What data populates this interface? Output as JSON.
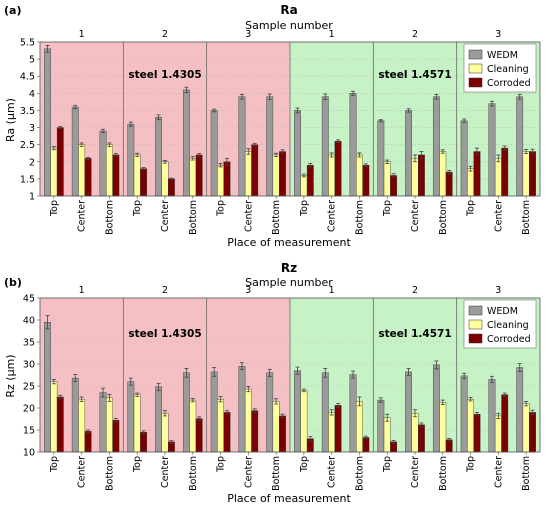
{
  "figure": {
    "colors": {
      "wedm": "#9a9a9a",
      "cleaning": "#ffff99",
      "corroded": "#7a0000",
      "bg_1_4305": "#f4c0c4",
      "bg_1_4571": "#c6f2c6",
      "error_bar": "#444444"
    }
  },
  "chart_data": [
    {
      "type": "bar",
      "panel_label": "(a)",
      "title": "Ra",
      "top_axis_title": "Sample number",
      "sample_numbers": [
        "1",
        "2",
        "3",
        "1",
        "2",
        "3"
      ],
      "steel_labels": [
        "steel 1.4305",
        "steel 1.4571"
      ],
      "xlabel": "Place of measurement",
      "ylabel": "Ra (µm)",
      "ylim": [
        1,
        5.5
      ],
      "yticks": [
        1,
        1.5,
        2,
        2.5,
        3,
        3.5,
        4,
        4.5,
        5,
        5.5
      ],
      "ytick_labels": [
        "1",
        "1.5",
        "2",
        "2.5",
        "3",
        "3.5",
        "4",
        "4.5",
        "5",
        "5.5"
      ],
      "grid": true,
      "legend_position": "top-right",
      "categories": [
        "Top",
        "Center",
        "Bottom",
        "Top",
        "Center",
        "Bottom",
        "Top",
        "Center",
        "Bottom",
        "Top",
        "Center",
        "Bottom",
        "Top",
        "Center",
        "Bottom",
        "Top",
        "Center",
        "Bottom"
      ],
      "series": [
        {
          "name": "WEDM",
          "values": [
            5.3,
            3.6,
            2.9,
            3.1,
            3.3,
            4.1,
            3.5,
            3.9,
            3.9,
            3.5,
            3.9,
            4.0,
            3.2,
            3.5,
            3.9,
            3.2,
            3.7,
            3.9
          ]
        },
        {
          "name": "Cleaning",
          "values": [
            2.4,
            2.5,
            2.5,
            2.2,
            2.0,
            2.1,
            1.9,
            2.3,
            2.2,
            1.6,
            2.2,
            2.2,
            2.0,
            2.1,
            2.3,
            1.8,
            2.1,
            2.3
          ]
        },
        {
          "name": "Corroded",
          "values": [
            3.0,
            2.1,
            2.2,
            1.8,
            1.5,
            2.2,
            2.0,
            2.5,
            2.3,
            1.9,
            2.6,
            1.9,
            1.6,
            2.2,
            1.7,
            2.3,
            2.4,
            2.3
          ]
        }
      ],
      "errors": [
        [
          0.1,
          0.05,
          0.05,
          0.06,
          0.07,
          0.08,
          0.04,
          0.07,
          0.08,
          0.07,
          0.08,
          0.06,
          0.03,
          0.05,
          0.07,
          0.05,
          0.07,
          0.07
        ],
        [
          0.05,
          0.05,
          0.05,
          0.05,
          0.04,
          0.05,
          0.05,
          0.08,
          0.05,
          0.04,
          0.06,
          0.06,
          0.05,
          0.1,
          0.05,
          0.07,
          0.1,
          0.06
        ],
        [
          0.03,
          0.03,
          0.04,
          0.03,
          0.02,
          0.04,
          0.1,
          0.04,
          0.05,
          0.05,
          0.04,
          0.04,
          0.05,
          0.1,
          0.05,
          0.1,
          0.06,
          0.07
        ]
      ]
    },
    {
      "type": "bar",
      "panel_label": "(b)",
      "title": "Rz",
      "top_axis_title": "Sample number",
      "sample_numbers": [
        "1",
        "2",
        "3",
        "1",
        "2",
        "3"
      ],
      "steel_labels": [
        "steel 1.4305",
        "steel 1.4571"
      ],
      "xlabel": "Place of measurement",
      "ylabel": "Rz (µm)",
      "ylim": [
        10,
        45
      ],
      "yticks": [
        10,
        15,
        20,
        25,
        30,
        35,
        40,
        45
      ],
      "ytick_labels": [
        "10",
        "15",
        "20",
        "25",
        "30",
        "35",
        "40",
        "45"
      ],
      "grid": true,
      "legend_position": "top-right",
      "categories": [
        "Top",
        "Center",
        "Bottom",
        "Top",
        "Center",
        "Bottom",
        "Top",
        "Center",
        "Bottom",
        "Top",
        "Center",
        "Bottom",
        "Top",
        "Center",
        "Bottom",
        "Top",
        "Center",
        "Bottom"
      ],
      "series": [
        {
          "name": "WEDM",
          "values": [
            39.5,
            26.8,
            23.5,
            26.0,
            24.8,
            28.0,
            28.2,
            29.5,
            28.0,
            28.5,
            28.0,
            27.6,
            21.8,
            28.2,
            29.8,
            27.3,
            26.5,
            29.2
          ]
        },
        {
          "name": "Cleaning",
          "values": [
            26.0,
            22.0,
            22.3,
            23.0,
            18.8,
            21.8,
            22.0,
            24.3,
            21.5,
            24.0,
            19.0,
            21.5,
            17.8,
            18.8,
            21.3,
            22.0,
            18.2,
            21.0
          ]
        },
        {
          "name": "Corroded",
          "values": [
            22.5,
            14.7,
            17.2,
            14.5,
            12.3,
            17.6,
            19.0,
            19.4,
            18.2,
            13.0,
            20.6,
            13.3,
            12.3,
            16.2,
            12.8,
            18.6,
            23.0,
            19.0
          ]
        }
      ],
      "errors": [
        [
          1.5,
          0.8,
          1.0,
          0.8,
          0.8,
          1.0,
          1.0,
          0.8,
          0.8,
          0.8,
          1.0,
          0.8,
          0.5,
          0.8,
          0.9,
          0.6,
          0.7,
          0.9
        ],
        [
          0.5,
          0.5,
          0.8,
          0.4,
          0.6,
          0.4,
          0.6,
          0.6,
          0.6,
          0.3,
          0.6,
          1.0,
          0.8,
          0.8,
          0.5,
          0.4,
          0.6,
          0.5
        ],
        [
          0.4,
          0.3,
          0.4,
          0.3,
          0.3,
          0.4,
          0.4,
          0.4,
          0.4,
          0.5,
          0.4,
          0.3,
          0.3,
          0.4,
          0.3,
          0.4,
          0.4,
          0.5
        ]
      ]
    }
  ]
}
